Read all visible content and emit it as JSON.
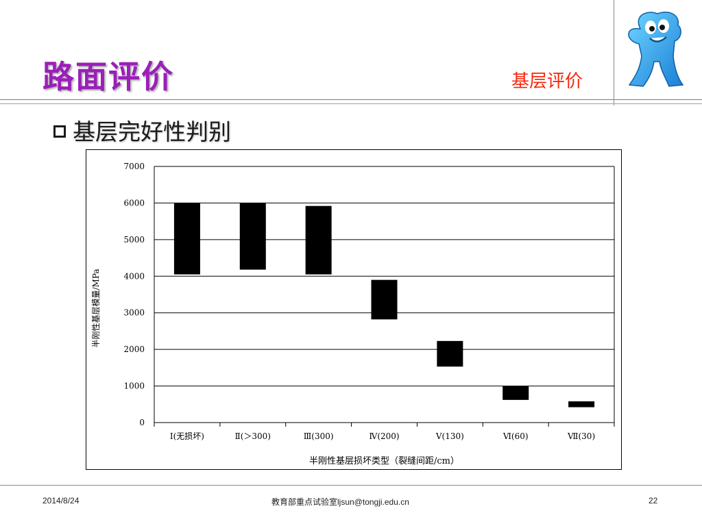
{
  "slide": {
    "title": "路面评价",
    "section_label": "基层评价",
    "bullet_text": "基层完好性判别"
  },
  "footer": {
    "date": "2014/8/24",
    "center_text": "教育部重点试验室ljsun@tongji.edu.cn",
    "page_number": "22"
  },
  "colors": {
    "title": "#9b1fb8",
    "section_label": "#f5280f",
    "bar": "#000000"
  },
  "icons": {
    "bullet": "hollow-square-bullet-icon",
    "mascot": "mascot-logo-icon"
  },
  "chart_data": {
    "type": "bar",
    "subtype": "floating-range",
    "categories": [
      "Ⅰ(无损坏)",
      "Ⅱ(＞300)",
      "Ⅲ(300)",
      "Ⅳ(200)",
      "Ⅴ(130)",
      "Ⅵ(60)",
      "Ⅶ(30)"
    ],
    "ranges": [
      [
        4050,
        6000
      ],
      [
        4180,
        6000
      ],
      [
        4050,
        5920
      ],
      [
        2820,
        3900
      ],
      [
        1530,
        2230
      ],
      [
        620,
        1000
      ],
      [
        420,
        580
      ]
    ],
    "xlabel": "半刚性基层损坏类型（裂缝间距/cm）",
    "ylabel": "半刚性基层模量/MPa",
    "ylim": [
      0,
      7000
    ],
    "yticks": [
      0,
      1000,
      2000,
      3000,
      4000,
      5000,
      6000,
      7000
    ],
    "grid": true,
    "legend": "none"
  }
}
